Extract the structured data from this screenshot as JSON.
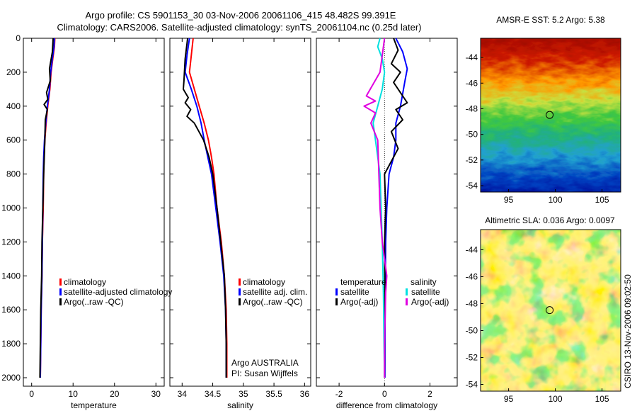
{
  "header": {
    "title_line1": "Argo profile: CS 5901153_30 03-Nov-2006 20061106_415 48.482S 99.391E",
    "title_line2": "Climatology: CARS2006. Satellite-adjusted climatology: synTS_20061104.nc (0.25d later)"
  },
  "chart_data": [
    {
      "type": "line",
      "panel": "temperature",
      "xlabel": "temperature",
      "ylabel": "",
      "xlim": [
        -2,
        32
      ],
      "ylim": [
        2050,
        0
      ],
      "x_ticks": [
        0,
        10,
        20,
        30
      ],
      "y_ticks": [
        0,
        200,
        400,
        600,
        800,
        1000,
        1200,
        1400,
        1600,
        1800,
        2000
      ],
      "legend": {
        "position": "lower-right",
        "entries": [
          "climatology",
          "satellite-adjusted climatology",
          "Argo(..raw -QC)"
        ]
      },
      "series": [
        {
          "name": "climatology",
          "color": "#ff0000",
          "points": [
            [
              5.6,
              0
            ],
            [
              5.5,
              50
            ],
            [
              5.1,
              120
            ],
            [
              4.7,
              200
            ],
            [
              4.4,
              300
            ],
            [
              3.9,
              400
            ],
            [
              3.5,
              500
            ],
            [
              3.2,
              600
            ],
            [
              3.0,
              700
            ],
            [
              2.9,
              800
            ],
            [
              2.8,
              1000
            ],
            [
              2.6,
              1200
            ],
            [
              2.5,
              1400
            ],
            [
              2.3,
              1600
            ],
            [
              2.2,
              1800
            ],
            [
              2.1,
              2000
            ]
          ]
        },
        {
          "name": "satellite-adjusted climatology",
          "color": "#0000ff",
          "points": [
            [
              5.5,
              0
            ],
            [
              5.4,
              50
            ],
            [
              5.0,
              120
            ],
            [
              4.6,
              200
            ],
            [
              4.3,
              300
            ],
            [
              3.8,
              400
            ],
            [
              3.4,
              500
            ],
            [
              3.1,
              600
            ],
            [
              2.9,
              700
            ],
            [
              2.8,
              800
            ],
            [
              2.7,
              1000
            ],
            [
              2.6,
              1200
            ],
            [
              2.5,
              1400
            ],
            [
              2.3,
              1600
            ],
            [
              2.2,
              1800
            ],
            [
              2.1,
              2000
            ]
          ]
        },
        {
          "name": "Argo(..raw -QC)",
          "color": "#000000",
          "points": [
            [
              5.2,
              0
            ],
            [
              5.0,
              80
            ],
            [
              4.3,
              180
            ],
            [
              4.5,
              250
            ],
            [
              3.6,
              320
            ],
            [
              3.9,
              360
            ],
            [
              3.0,
              390
            ],
            [
              3.8,
              420
            ],
            [
              3.3,
              480
            ],
            [
              3.2,
              600
            ],
            [
              2.9,
              800
            ],
            [
              2.7,
              1000
            ],
            [
              2.5,
              1200
            ],
            [
              2.4,
              1400
            ],
            [
              2.2,
              1600
            ],
            [
              2.1,
              1800
            ],
            [
              2.0,
              2000
            ]
          ]
        }
      ]
    },
    {
      "type": "line",
      "panel": "salinity",
      "xlabel": "salinity",
      "ylabel": "",
      "xlim": [
        33.8,
        36.1
      ],
      "ylim": [
        2050,
        0
      ],
      "x_ticks": [
        34,
        34.5,
        35,
        35.5,
        36
      ],
      "x_tick_labels": [
        "34",
        "34.5",
        "35",
        "35.5",
        "36"
      ],
      "legend": {
        "position": "lower-right",
        "entries": [
          "climatology",
          "satellite adj. clim.",
          "Argo(..raw -QC)"
        ]
      },
      "annotations": [
        "Argo AUSTRALIA",
        "PI: Susan Wijffels"
      ],
      "series": [
        {
          "name": "climatology",
          "color": "#ff0000",
          "points": [
            [
              34.18,
              0
            ],
            [
              34.15,
              100
            ],
            [
              34.12,
              200
            ],
            [
              34.2,
              300
            ],
            [
              34.28,
              400
            ],
            [
              34.36,
              500
            ],
            [
              34.43,
              600
            ],
            [
              34.48,
              700
            ],
            [
              34.52,
              800
            ],
            [
              34.57,
              1000
            ],
            [
              34.64,
              1200
            ],
            [
              34.69,
              1400
            ],
            [
              34.72,
              1600
            ],
            [
              34.73,
              1800
            ],
            [
              34.73,
              2000
            ]
          ]
        },
        {
          "name": "satellite adj. clim.",
          "color": "#0000ff",
          "points": [
            [
              34.12,
              0
            ],
            [
              34.08,
              100
            ],
            [
              34.05,
              200
            ],
            [
              34.15,
              300
            ],
            [
              34.24,
              400
            ],
            [
              34.31,
              500
            ],
            [
              34.36,
              600
            ],
            [
              34.42,
              700
            ],
            [
              34.48,
              800
            ],
            [
              34.55,
              1000
            ],
            [
              34.62,
              1200
            ],
            [
              34.68,
              1400
            ],
            [
              34.71,
              1600
            ],
            [
              34.72,
              1800
            ],
            [
              34.72,
              2000
            ]
          ]
        },
        {
          "name": "Argo(..raw -QC)",
          "color": "#000000",
          "points": [
            [
              34.09,
              0
            ],
            [
              34.05,
              120
            ],
            [
              34.03,
              250
            ],
            [
              34.02,
              300
            ],
            [
              34.1,
              350
            ],
            [
              34.05,
              380
            ],
            [
              34.14,
              420
            ],
            [
              34.08,
              460
            ],
            [
              34.2,
              500
            ],
            [
              34.35,
              600
            ],
            [
              34.44,
              700
            ],
            [
              34.5,
              800
            ],
            [
              34.57,
              1000
            ],
            [
              34.63,
              1200
            ],
            [
              34.69,
              1400
            ],
            [
              34.71,
              1600
            ],
            [
              34.72,
              1800
            ],
            [
              34.72,
              2000
            ]
          ]
        }
      ]
    },
    {
      "type": "line",
      "panel": "difference",
      "xlabel": "difference from climatology",
      "ylabel": "",
      "xlim": [
        -3,
        3.2
      ],
      "ylim": [
        2050,
        0
      ],
      "x_ticks": [
        -2,
        0,
        2
      ],
      "legend": {
        "position": "lower-center",
        "temperature_header": "temperature",
        "salinity_header": "salinity",
        "temperature_entries": [
          "satellite",
          "Argo(-adj)"
        ],
        "salinity_entries": [
          "satellite",
          "Argo(-adj)"
        ]
      },
      "series": [
        {
          "name": "temperature satellite",
          "color": "#0000ff",
          "points": [
            [
              0.5,
              0
            ],
            [
              0.8,
              80
            ],
            [
              1.0,
              180
            ],
            [
              0.9,
              250
            ],
            [
              0.7,
              400
            ],
            [
              0.5,
              500
            ],
            [
              0.5,
              600
            ],
            [
              0.4,
              700
            ],
            [
              0.2,
              800
            ],
            [
              0.1,
              1000
            ],
            [
              0.05,
              1200
            ],
            [
              0.03,
              1500
            ],
            [
              0.02,
              1800
            ],
            [
              0.02,
              2000
            ]
          ]
        },
        {
          "name": "temperature Argo(-adj)",
          "color": "#000000",
          "points": [
            [
              0.4,
              0
            ],
            [
              0.6,
              70
            ],
            [
              0.3,
              150
            ],
            [
              0.7,
              200
            ],
            [
              0.4,
              260
            ],
            [
              1.0,
              380
            ],
            [
              0.5,
              420
            ],
            [
              0.8,
              480
            ],
            [
              0.3,
              550
            ],
            [
              0.6,
              650
            ],
            [
              0.0,
              800
            ],
            [
              0.05,
              1000
            ],
            [
              0.0,
              1200
            ],
            [
              0.02,
              1500
            ],
            [
              0.0,
              1800
            ],
            [
              0.0,
              2000
            ]
          ]
        },
        {
          "name": "salinity satellite",
          "color": "#00e0e0",
          "points": [
            [
              -0.2,
              0
            ],
            [
              -0.3,
              50
            ],
            [
              -0.1,
              120
            ],
            [
              0.0,
              200
            ],
            [
              -0.1,
              300
            ],
            [
              -0.3,
              400
            ],
            [
              -0.5,
              500
            ],
            [
              -0.4,
              600
            ],
            [
              -0.3,
              700
            ],
            [
              -0.2,
              800
            ],
            [
              -0.15,
              1000
            ],
            [
              -0.1,
              1200
            ],
            [
              -0.05,
              1500
            ],
            [
              -0.02,
              1800
            ],
            [
              0.0,
              2000
            ]
          ]
        },
        {
          "name": "salinity Argo(-adj)",
          "color": "#e000e0",
          "points": [
            [
              0.0,
              0
            ],
            [
              -0.1,
              100
            ],
            [
              -0.2,
              200
            ],
            [
              -0.8,
              340
            ],
            [
              -0.4,
              370
            ],
            [
              -0.9,
              400
            ],
            [
              -0.4,
              440
            ],
            [
              -0.6,
              500
            ],
            [
              -0.3,
              600
            ],
            [
              -0.25,
              800
            ],
            [
              -0.2,
              1000
            ],
            [
              -0.1,
              1200
            ],
            [
              0.1,
              1400
            ],
            [
              0.05,
              1500
            ],
            [
              0.0,
              1800
            ],
            [
              0.0,
              2000
            ]
          ]
        }
      ]
    },
    {
      "type": "heatmap",
      "title": "AMSR-E SST: 5.2 Argo: 5.38",
      "x_ticks": [
        95,
        100,
        105
      ],
      "y_ticks": [
        -44,
        -46,
        -48,
        -50,
        -52,
        -54
      ],
      "xlim": [
        92,
        107
      ],
      "ylim": [
        -54.5,
        -42.5
      ],
      "marker": [
        99.391,
        -48.482
      ]
    },
    {
      "type": "heatmap",
      "title": "Altimetric SLA: 0.036 Argo: 0.0097",
      "x_ticks": [
        95,
        100,
        105
      ],
      "y_ticks": [
        -44,
        -46,
        -48,
        -50,
        -52,
        -54
      ],
      "xlim": [
        92,
        107
      ],
      "ylim": [
        -54.5,
        -42.5
      ],
      "marker": [
        99.391,
        -48.482
      ]
    }
  ],
  "footer": {
    "credit": "CSIRO 13-Nov-2006 09:02:50"
  }
}
